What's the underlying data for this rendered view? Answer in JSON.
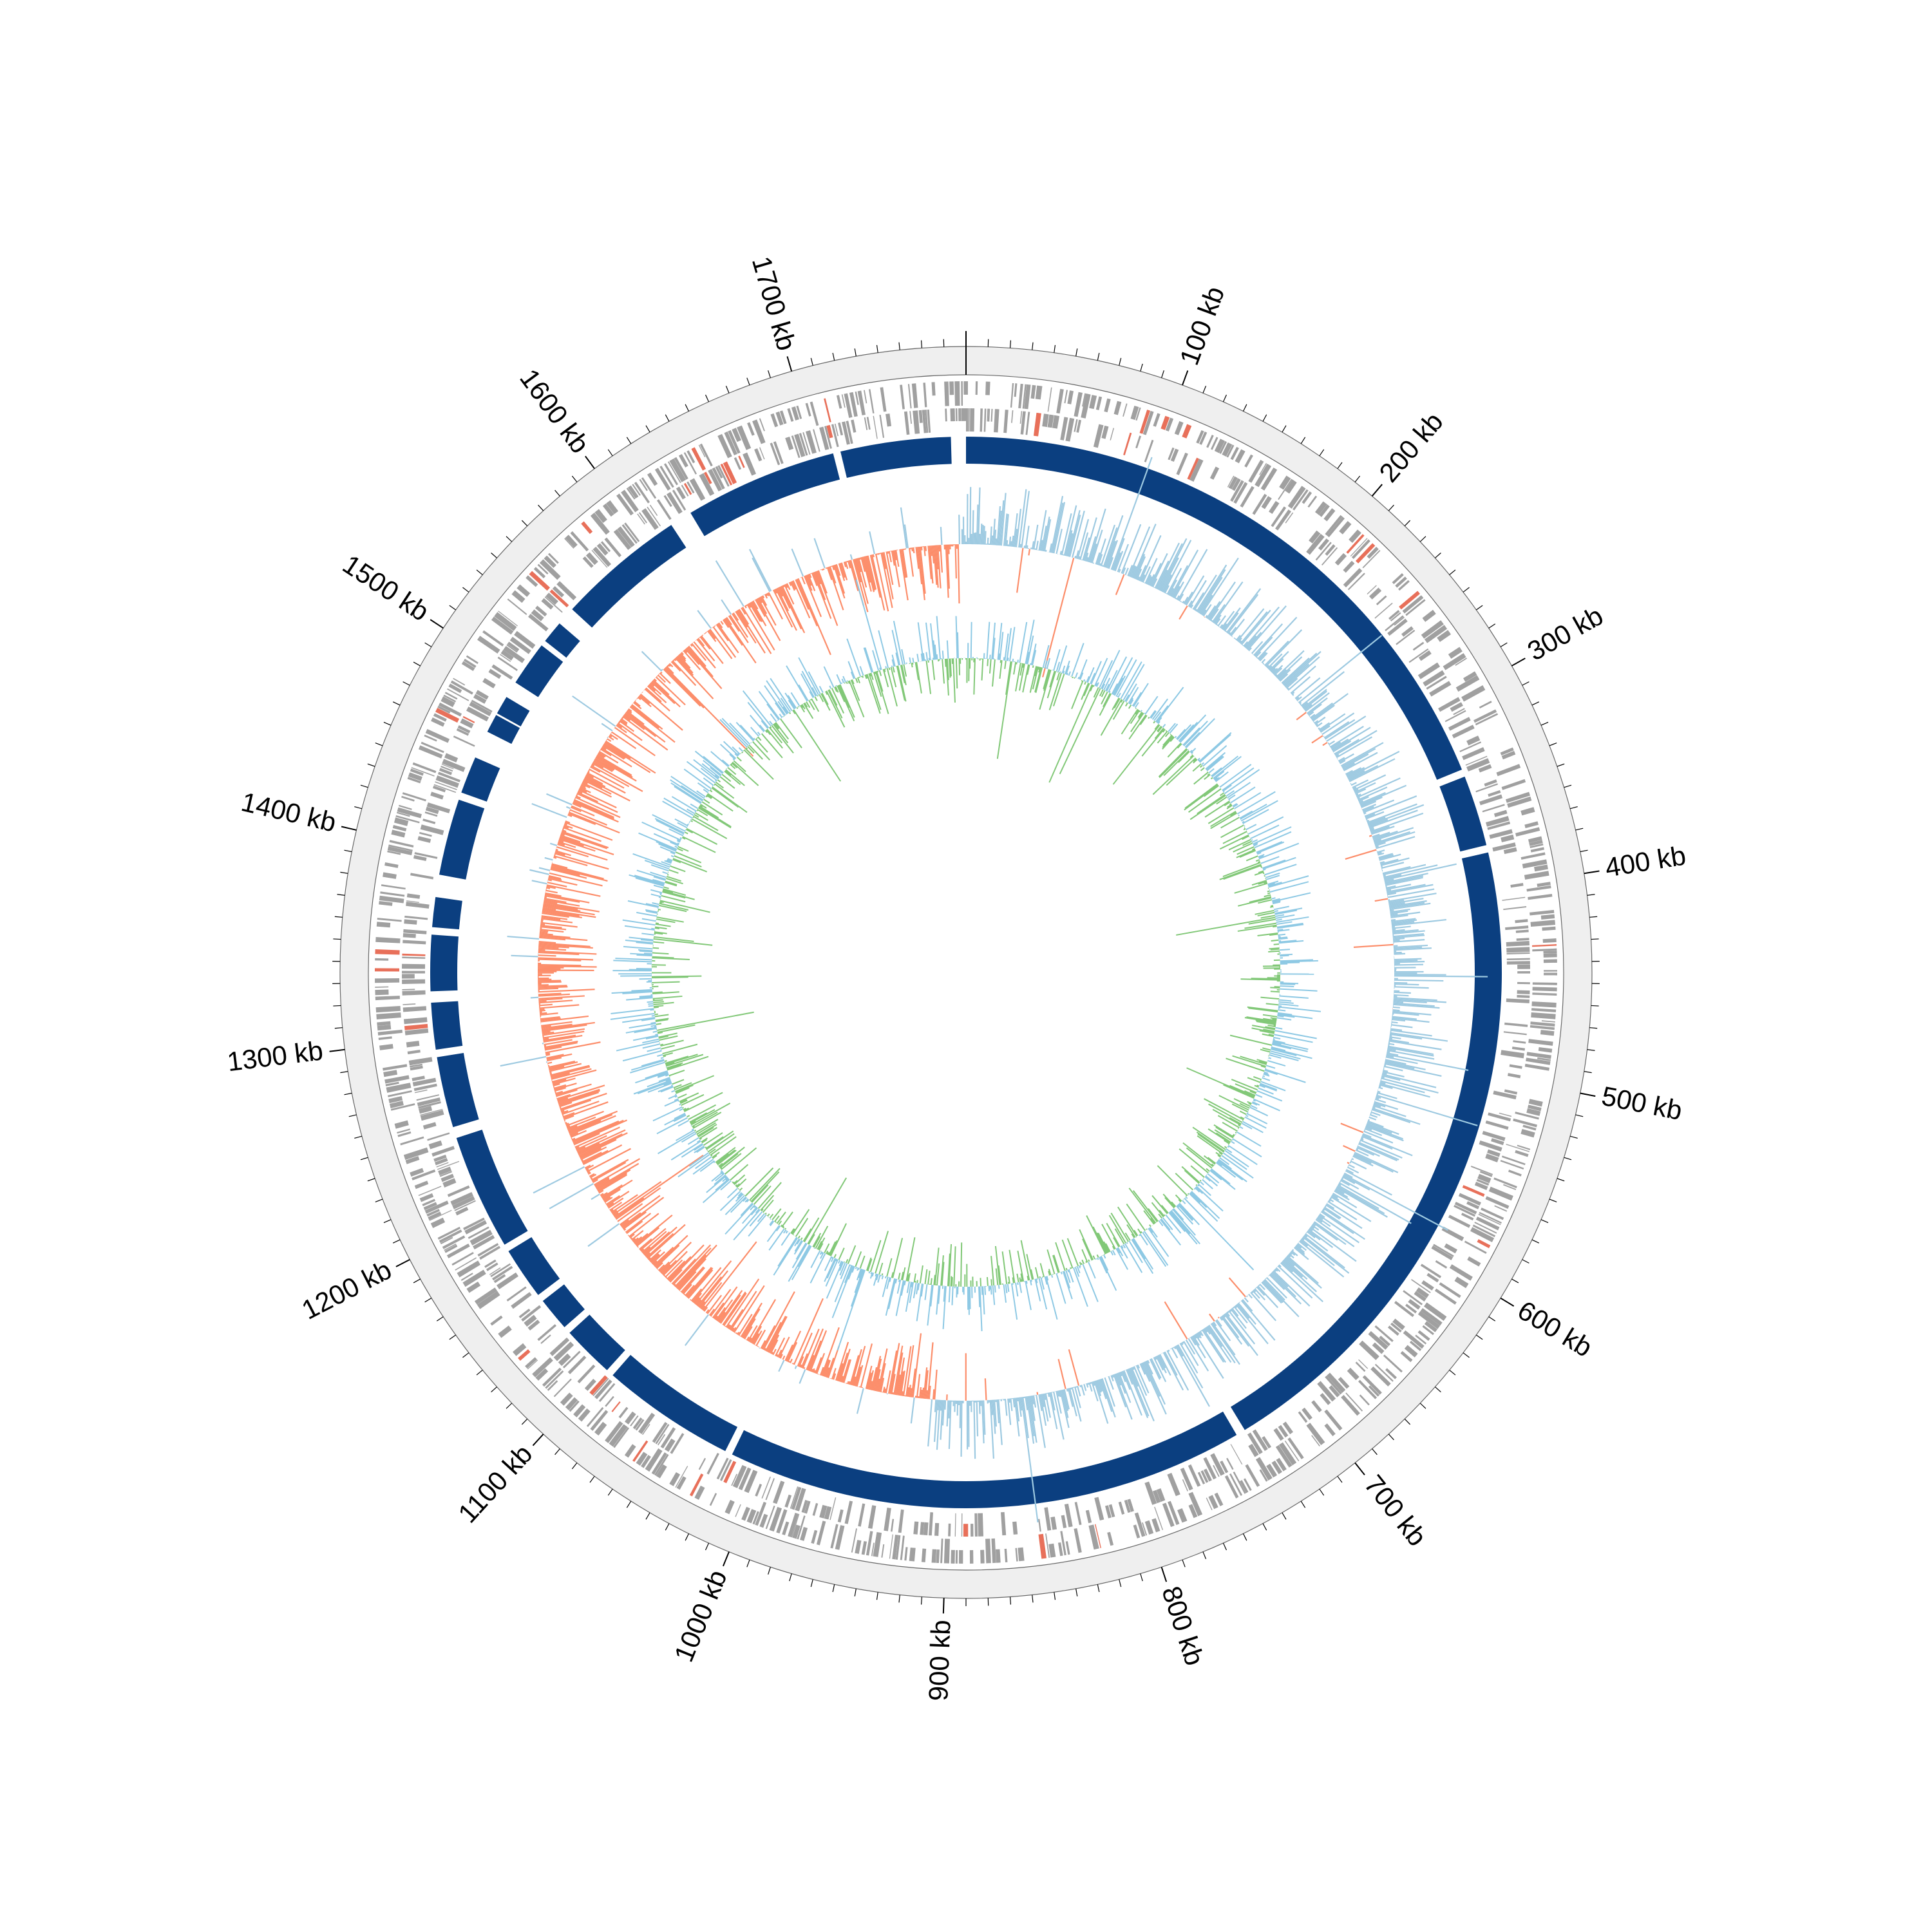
{
  "chart_data": {
    "type": "circular-genome",
    "genome_length_kb": 1780,
    "axis": {
      "unit": "kb",
      "major_tick_step_kb": 100,
      "minor_tick_step_kb": 10,
      "tick_labels": [
        "100 kb",
        "200 kb",
        "300 kb",
        "400 kb",
        "500 kb",
        "600 kb",
        "700 kb",
        "800 kb",
        "900 kb",
        "1000 kb",
        "1100 kb",
        "1200 kb",
        "1300 kb",
        "1400 kb",
        "1500 kb",
        "1600 kb",
        "1700 kb"
      ]
    },
    "contigs_kb": [
      [
        0,
        335
      ],
      [
        339,
        377
      ],
      [
        381,
        735
      ],
      [
        740,
        1018
      ],
      [
        1022,
        1094
      ],
      [
        1098,
        1126
      ],
      [
        1130,
        1148
      ],
      [
        1152,
        1180
      ],
      [
        1184,
        1246
      ],
      [
        1252,
        1290
      ],
      [
        1294,
        1319
      ],
      [
        1325,
        1355
      ],
      [
        1359,
        1375
      ],
      [
        1387,
        1428
      ],
      [
        1432,
        1452
      ],
      [
        1467,
        1477
      ],
      [
        1478,
        1488
      ],
      [
        1497,
        1521
      ],
      [
        1524,
        1536
      ],
      [
        1546,
        1615
      ],
      [
        1627,
        1709
      ],
      [
        1713,
        1772
      ]
    ],
    "feature_tracks": [
      {
        "name": "CDS (+)",
        "color": "#a0a0a0"
      },
      {
        "name": "CDS (-)",
        "color": "#a0a0a0"
      },
      {
        "name": "rRNA/tRNA",
        "color": "#e8705a"
      }
    ],
    "gc_skew": {
      "positive_color": "#9ecae1",
      "negative_color": "#fc8d6a",
      "negative_region_kb": [
        910,
        1775
      ],
      "scale": [
        -0.3,
        0.3
      ]
    },
    "gc_content": {
      "above_mean_color": "#8ec9e4",
      "below_mean_color": "#82c878",
      "scale": [
        -0.15,
        0.15
      ]
    },
    "colors": {
      "outer_band": "#efefef",
      "contig": "#0b3f80",
      "feature": "#a0a0a0",
      "rna": "#e8705a",
      "axis": "#000000"
    }
  }
}
